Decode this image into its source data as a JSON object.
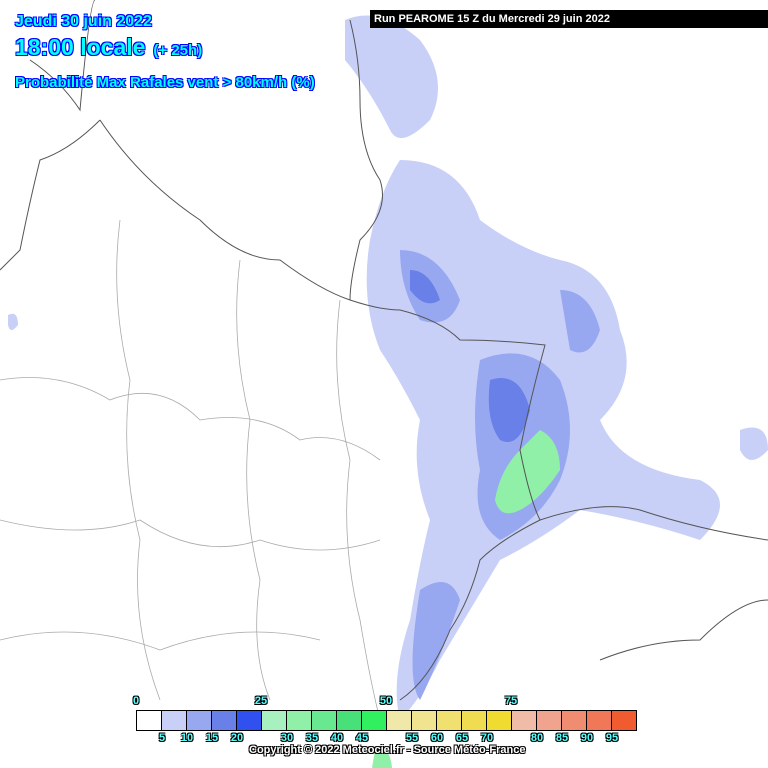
{
  "header": {
    "date": "Jeudi 30 juin 2022",
    "time": "18:00 locale",
    "lead": "(+ 25h)",
    "parameter": "Probabilité Max Rafales vent > 80km/h (%)"
  },
  "run_label": "Run PEAROME 15 Z du Mercredi 29 juin 2022",
  "legend": {
    "colors": [
      "#ffffff",
      "#c8d0f8",
      "#98a8f0",
      "#6880e8",
      "#3050f0",
      "#a8f0c0",
      "#90f0a8",
      "#68e890",
      "#48e078",
      "#30f060",
      "#f0e8a8",
      "#f0e490",
      "#f0e070",
      "#f0dc50",
      "#f0dc30",
      "#f0bca8",
      "#f0a490",
      "#f08c70",
      "#f07858",
      "#f05c30"
    ],
    "top_labels": [
      "0",
      "25",
      "50",
      "75"
    ],
    "bottom_labels": [
      "5",
      "10",
      "15",
      "20",
      "30",
      "35",
      "40",
      "45",
      "55",
      "60",
      "65",
      "70",
      "80",
      "85",
      "90",
      "95"
    ]
  },
  "copyright": "Copyright © 2022 Meteociel.fr - Source Météo-France"
}
